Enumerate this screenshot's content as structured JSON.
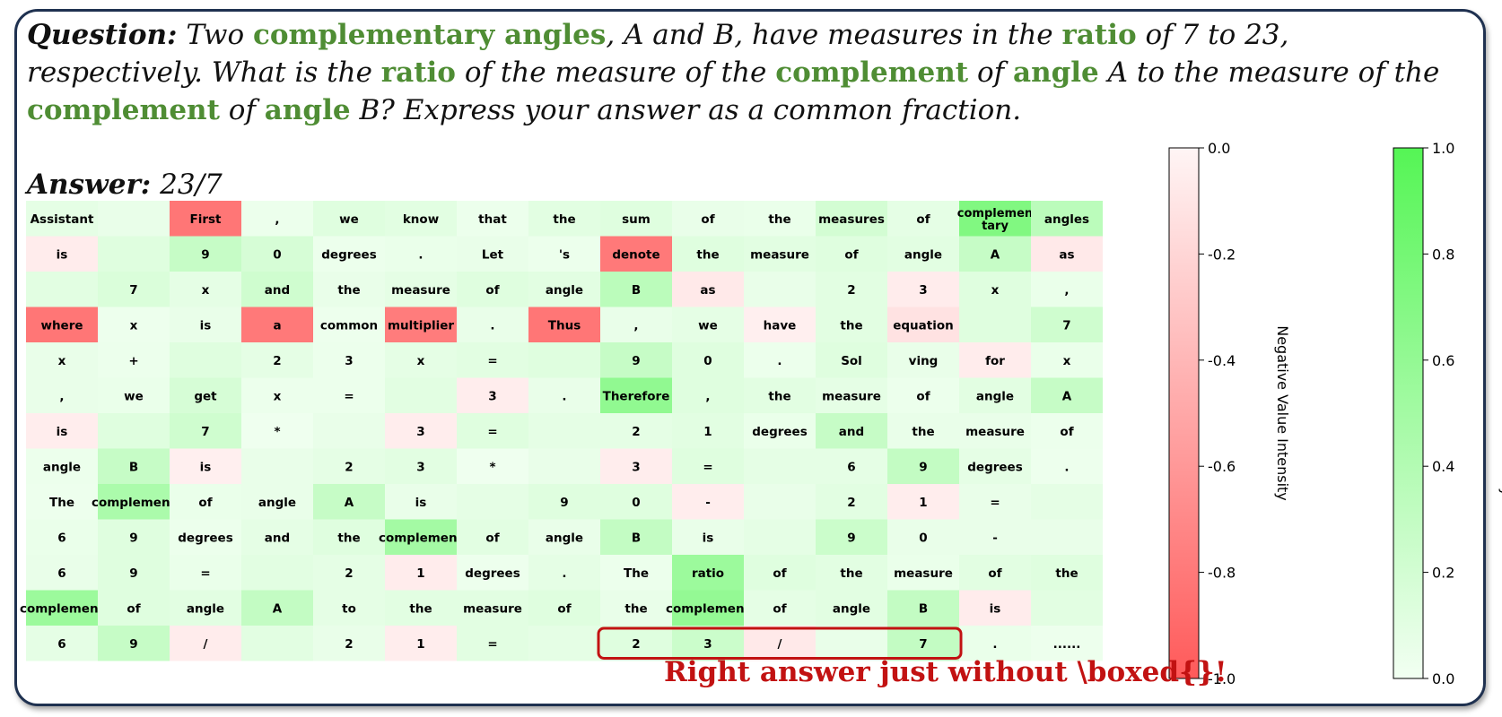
{
  "question": {
    "label": "Question:",
    "segments": [
      {
        "t": " Two "
      },
      {
        "t": "complementary angles",
        "h": true
      },
      {
        "t": ", A and B, have measures in the "
      },
      {
        "t": "ratio",
        "h": true
      },
      {
        "t": " of 7 to 23, respectively. What is the "
      },
      {
        "t": "ratio",
        "h": true
      },
      {
        "t": " of the measure of the "
      },
      {
        "t": "complement",
        "h": true
      },
      {
        "t": " of "
      },
      {
        "t": "angle",
        "h": true
      },
      {
        "t": " A to the measure of the "
      },
      {
        "t": "complement",
        "h": true
      },
      {
        "t": " of "
      },
      {
        "t": "angle",
        "h": true
      },
      {
        "t": " B? Express your answer as a common fraction."
      }
    ]
  },
  "answer": {
    "label": "Answer:",
    "value": "23/7"
  },
  "note": "Right answer just without \\boxed{}!",
  "colors": {
    "positive_max": "#55f555",
    "negative_max": "#ff5a5a",
    "frame": "#1f3150",
    "highlight": "#4f8d34",
    "box": "#c21212"
  },
  "chart_data": {
    "type": "heatmap",
    "columns": 15,
    "tokens": [
      [
        "Assistant",
        "",
        "First",
        ",",
        "we",
        "know",
        "that",
        "the",
        "sum",
        "of",
        "the",
        "measures",
        "of",
        "complementary",
        "angles"
      ],
      [
        "is",
        "",
        "9",
        "0",
        "degrees",
        ".",
        "Let",
        "'s",
        "denote",
        "the",
        "measure",
        "of",
        "angle",
        "A",
        "as"
      ],
      [
        "",
        "7",
        "x",
        "and",
        "the",
        "measure",
        "of",
        "angle",
        "B",
        "as",
        "",
        "2",
        "3",
        "x",
        ","
      ],
      [
        "where",
        "x",
        "is",
        "a",
        "common",
        "multiplier",
        ".",
        "Thus",
        ",",
        "we",
        "have",
        "the",
        "equation",
        "",
        "7"
      ],
      [
        "x",
        "+",
        "",
        "2",
        "3",
        "x",
        "=",
        "",
        "9",
        "0",
        ".",
        "Sol",
        "ving",
        "for",
        "x"
      ],
      [
        ",",
        "we",
        "get",
        "x",
        "=",
        "",
        "3",
        ".",
        "Therefore",
        ",",
        "the",
        "measure",
        "of",
        "angle",
        "A"
      ],
      [
        "is",
        "",
        "7",
        "*",
        "",
        "3",
        "=",
        "",
        "2",
        "1",
        "degrees",
        "and",
        "the",
        "measure",
        "of"
      ],
      [
        "angle",
        "B",
        "is",
        "",
        "2",
        "3",
        "*",
        "",
        "3",
        "=",
        "",
        "6",
        "9",
        "degrees",
        "."
      ],
      [
        "The",
        "complement",
        "of",
        "angle",
        "A",
        "is",
        "",
        "9",
        "0",
        "-",
        "",
        "2",
        "1",
        "=",
        ""
      ],
      [
        "6",
        "9",
        "degrees",
        "and",
        "the",
        "complement",
        "of",
        "angle",
        "B",
        "is",
        "",
        "9",
        "0",
        "-",
        ""
      ],
      [
        "6",
        "9",
        "=",
        "",
        "2",
        "1",
        "degrees",
        ".",
        "The",
        "ratio",
        "of",
        "the",
        "measure",
        "of",
        "the"
      ],
      [
        "complement",
        "of",
        "angle",
        "A",
        "to",
        "the",
        "measure",
        "of",
        "the",
        "complement",
        "of",
        "angle",
        "B",
        "is",
        ""
      ],
      [
        "6",
        "9",
        "/",
        "",
        "2",
        "1",
        "=",
        "",
        "2",
        "3",
        "/",
        "",
        "7",
        ".",
        "......"
      ]
    ],
    "values": [
      [
        0.08,
        0.06,
        -0.82,
        0.04,
        0.12,
        0.1,
        0.04,
        0.1,
        0.12,
        0.06,
        0.05,
        0.2,
        0.08,
        0.72,
        0.35
      ],
      [
        -0.06,
        0.12,
        0.28,
        0.18,
        0.04,
        0.05,
        0.06,
        0.04,
        -0.8,
        0.12,
        0.1,
        0.12,
        0.1,
        0.28,
        -0.08
      ],
      [
        0.1,
        0.15,
        0.08,
        0.22,
        0.06,
        0.08,
        0.12,
        0.1,
        0.35,
        -0.08,
        0.06,
        0.1,
        -0.06,
        0.12,
        0.05
      ],
      [
        -0.82,
        0.03,
        0.06,
        -0.8,
        0.03,
        -0.78,
        0.06,
        -0.82,
        0.06,
        0.08,
        -0.04,
        0.1,
        -0.12,
        0.12,
        0.22
      ],
      [
        0.06,
        0.04,
        0.12,
        0.08,
        0.04,
        0.08,
        0.1,
        0.12,
        0.28,
        0.12,
        0.04,
        0.12,
        0.06,
        -0.06,
        0.05
      ],
      [
        0.06,
        0.05,
        0.18,
        0.04,
        0.04,
        0.1,
        -0.05,
        0.06,
        0.62,
        0.12,
        0.1,
        0.08,
        0.04,
        0.1,
        0.28
      ],
      [
        -0.05,
        0.12,
        0.22,
        0.02,
        0.06,
        -0.05,
        0.12,
        0.08,
        0.08,
        0.1,
        0.05,
        0.28,
        0.06,
        0.06,
        0.04
      ],
      [
        0.04,
        0.28,
        -0.04,
        0.06,
        0.08,
        0.1,
        0.02,
        0.06,
        -0.05,
        0.12,
        0.08,
        0.08,
        0.3,
        0.08,
        0.03
      ],
      [
        0.03,
        0.45,
        0.05,
        0.06,
        0.28,
        0.06,
        0.08,
        0.12,
        0.12,
        -0.05,
        0.06,
        0.1,
        -0.05,
        0.06,
        0.08
      ],
      [
        0.05,
        0.12,
        0.04,
        0.08,
        0.12,
        0.5,
        0.1,
        0.06,
        0.3,
        0.06,
        0.08,
        0.25,
        0.06,
        0.06,
        0.06
      ],
      [
        0.06,
        0.12,
        0.05,
        0.1,
        0.08,
        -0.06,
        0.03,
        0.08,
        0.04,
        0.55,
        0.12,
        0.1,
        0.05,
        0.1,
        0.12
      ],
      [
        0.55,
        0.12,
        0.1,
        0.3,
        0.08,
        0.1,
        0.1,
        0.12,
        0.06,
        0.6,
        0.08,
        0.1,
        0.3,
        -0.06,
        0.1
      ],
      [
        0.08,
        0.28,
        -0.06,
        0.1,
        0.06,
        -0.05,
        0.1,
        0.08,
        0.12,
        0.25,
        -0.08,
        0.06,
        0.3,
        0.05,
        0.03
      ]
    ],
    "highlight_box": {
      "row": 12,
      "col_start": 8,
      "col_end": 12
    },
    "colorbars": [
      {
        "name": "negative",
        "label": "Negative Value Intensity",
        "ticks": [
          "0.0",
          "-0.2",
          "-0.4",
          "-0.6",
          "-0.8",
          "-1.0"
        ],
        "range": [
          0.0,
          -1.0
        ],
        "color_top": "#fff5f5",
        "color_bottom": "#ff5a5a"
      },
      {
        "name": "positive",
        "label": "Positive Value Intensity",
        "ticks": [
          "1.0",
          "0.8",
          "0.6",
          "0.4",
          "0.2",
          "0.0"
        ],
        "range": [
          1.0,
          0.0
        ],
        "color_top": "#55f555",
        "color_bottom": "#f2fff2"
      }
    ]
  }
}
